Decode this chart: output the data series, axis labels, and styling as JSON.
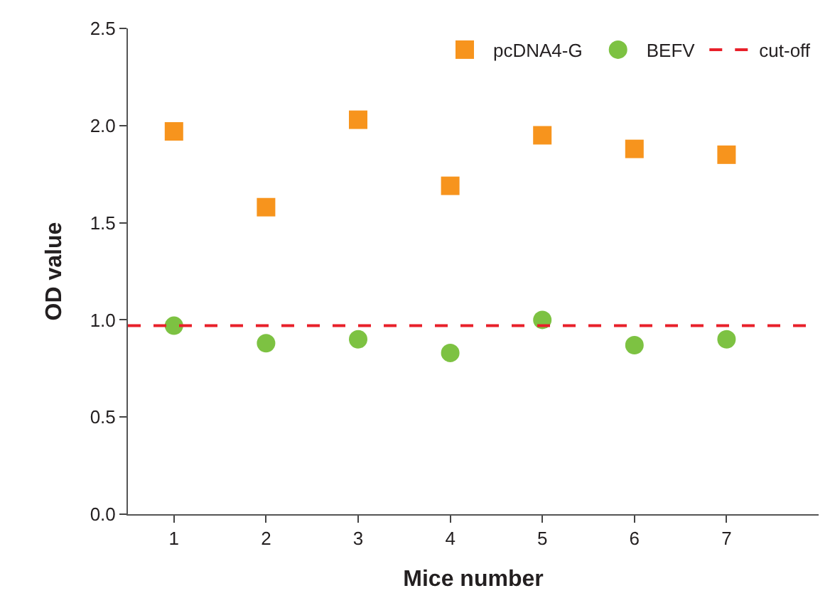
{
  "chart_data": {
    "type": "scatter",
    "xlabel": "Mice number",
    "ylabel": "OD value",
    "x": [
      1,
      2,
      3,
      4,
      5,
      6,
      7
    ],
    "series": [
      {
        "name": "pcDNA4-G",
        "color": "#f7941d",
        "marker": "square",
        "values": [
          1.97,
          1.58,
          2.03,
          1.69,
          1.95,
          1.88,
          1.85
        ]
      },
      {
        "name": "BEFV",
        "color": "#7dc242",
        "marker": "circle",
        "values": [
          0.97,
          0.88,
          0.9,
          0.83,
          1.0,
          0.87,
          0.9
        ]
      }
    ],
    "ref_lines": [
      {
        "axis": "y",
        "value": 0.97,
        "label": "cut-off",
        "color": "#e8202a",
        "line_style": "dashed"
      }
    ],
    "xlim": [
      0.5,
      8.0
    ],
    "xticks": [
      1,
      2,
      3,
      4,
      5,
      6,
      7
    ],
    "ylim": [
      0,
      2.5
    ],
    "yticks": [
      {
        "value": 0,
        "label": "0.0"
      },
      {
        "value": 0.5,
        "label": "0.5"
      },
      {
        "value": 1,
        "label": "1.0"
      },
      {
        "value": 1.5,
        "label": "1.5"
      },
      {
        "value": 2,
        "label": "2.0"
      },
      {
        "value": 2.5,
        "label": "2.5"
      }
    ],
    "legend": "top right"
  }
}
